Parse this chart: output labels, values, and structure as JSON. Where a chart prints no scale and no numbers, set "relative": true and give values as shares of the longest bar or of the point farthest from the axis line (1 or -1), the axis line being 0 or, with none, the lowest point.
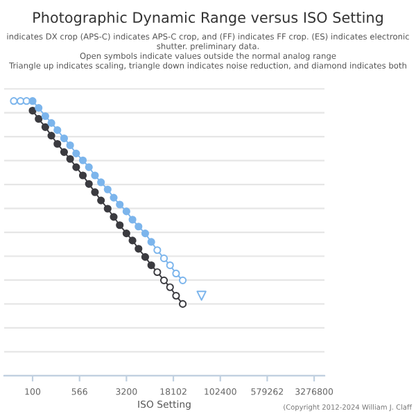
{
  "chart_data": {
    "type": "line",
    "title": "Photographic Dynamic Range versus ISO Setting",
    "subtitle": "indicates DX crop (APS-C) indicates APS-C crop, and (FF) indicates FF crop. (ES) indicates electronic shutter. preliminary data.\nOpen symbols indicate values outside the normal analog range\nTriangle up indicates scaling, triangle down indicates noise reduction, and diamond indicates both",
    "xlabel": "ISO Setting",
    "relative": true,
    "log": "x",
    "grid": "y",
    "xlim": [
      35,
      4800000
    ],
    "xticks": [
      100,
      566,
      3200,
      18102,
      102400,
      579262,
      3276800
    ],
    "annotations": [
      "(Copyright 2012-2024 William J. Claff"
    ],
    "series": [
      {
        "color": "#3b3b40",
        "marker": "circle",
        "x": [
          100,
          125,
          160,
          200,
          250,
          320,
          400,
          500,
          640,
          800,
          1000,
          1250,
          1600,
          2000,
          2500,
          3200,
          4000,
          5000,
          6400,
          8000,
          10000,
          12800,
          16000,
          20000,
          25600
        ],
        "values": [
          0.965,
          0.935,
          0.905,
          0.874,
          0.844,
          0.814,
          0.789,
          0.759,
          0.729,
          0.698,
          0.668,
          0.638,
          0.608,
          0.578,
          0.548,
          0.518,
          0.492,
          0.462,
          0.432,
          0.402,
          0.377,
          0.347,
          0.322,
          0.291,
          0.261
        ],
        "colors": [
          "#3b3b40",
          "#3b3b40",
          "#3b3b40",
          "#3b3b40",
          "#3b3b40",
          "#3b3b40",
          "#3b3b40",
          "#3b3b40",
          "#3b3b40",
          "#3b3b40",
          "#3b3b40",
          "#3b3b40",
          "#3b3b40",
          "#3b3b40",
          "#3b3b40",
          "#3b3b40",
          "#3b3b40",
          "#3b3b40",
          "#3b3b40",
          "#3b3b40",
          "#ffffff",
          "#ffffff",
          "#ffffff",
          "#ffffff",
          "#ffffff"
        ]
      },
      {
        "color": "#7cb5ec",
        "marker": "circle",
        "x": [
          50,
          64,
          80,
          100,
          125,
          160,
          200,
          250,
          320,
          400,
          500,
          640,
          800,
          1000,
          1250,
          1600,
          2000,
          2500,
          3200,
          4000,
          5000,
          6400,
          8000,
          10000,
          12800,
          16000,
          20000,
          25600
        ],
        "values": [
          1.0,
          1.0,
          1.0,
          1.0,
          0.975,
          0.945,
          0.92,
          0.894,
          0.864,
          0.839,
          0.809,
          0.784,
          0.759,
          0.729,
          0.704,
          0.678,
          0.648,
          0.623,
          0.598,
          0.568,
          0.543,
          0.518,
          0.487,
          0.457,
          0.427,
          0.402,
          0.372,
          0.347
        ],
        "colors": [
          "#ffffff",
          "#ffffff",
          "#ffffff",
          "#7cb5ec",
          "#7cb5ec",
          "#7cb5ec",
          "#7cb5ec",
          "#7cb5ec",
          "#7cb5ec",
          "#7cb5ec",
          "#7cb5ec",
          "#7cb5ec",
          "#7cb5ec",
          "#7cb5ec",
          "#7cb5ec",
          "#7cb5ec",
          "#7cb5ec",
          "#7cb5ec",
          "#7cb5ec",
          "#7cb5ec",
          "#7cb5ec",
          "#7cb5ec",
          "#7cb5ec",
          "#ffffff",
          "#ffffff",
          "#ffffff",
          "#ffffff",
          "#ffffff"
        ]
      },
      {
        "color": "#7cb5ec",
        "marker": "triangle",
        "x": [
          51200
        ],
        "values": [
          0.291
        ],
        "colors": [
          "#ffffff"
        ]
      }
    ]
  }
}
